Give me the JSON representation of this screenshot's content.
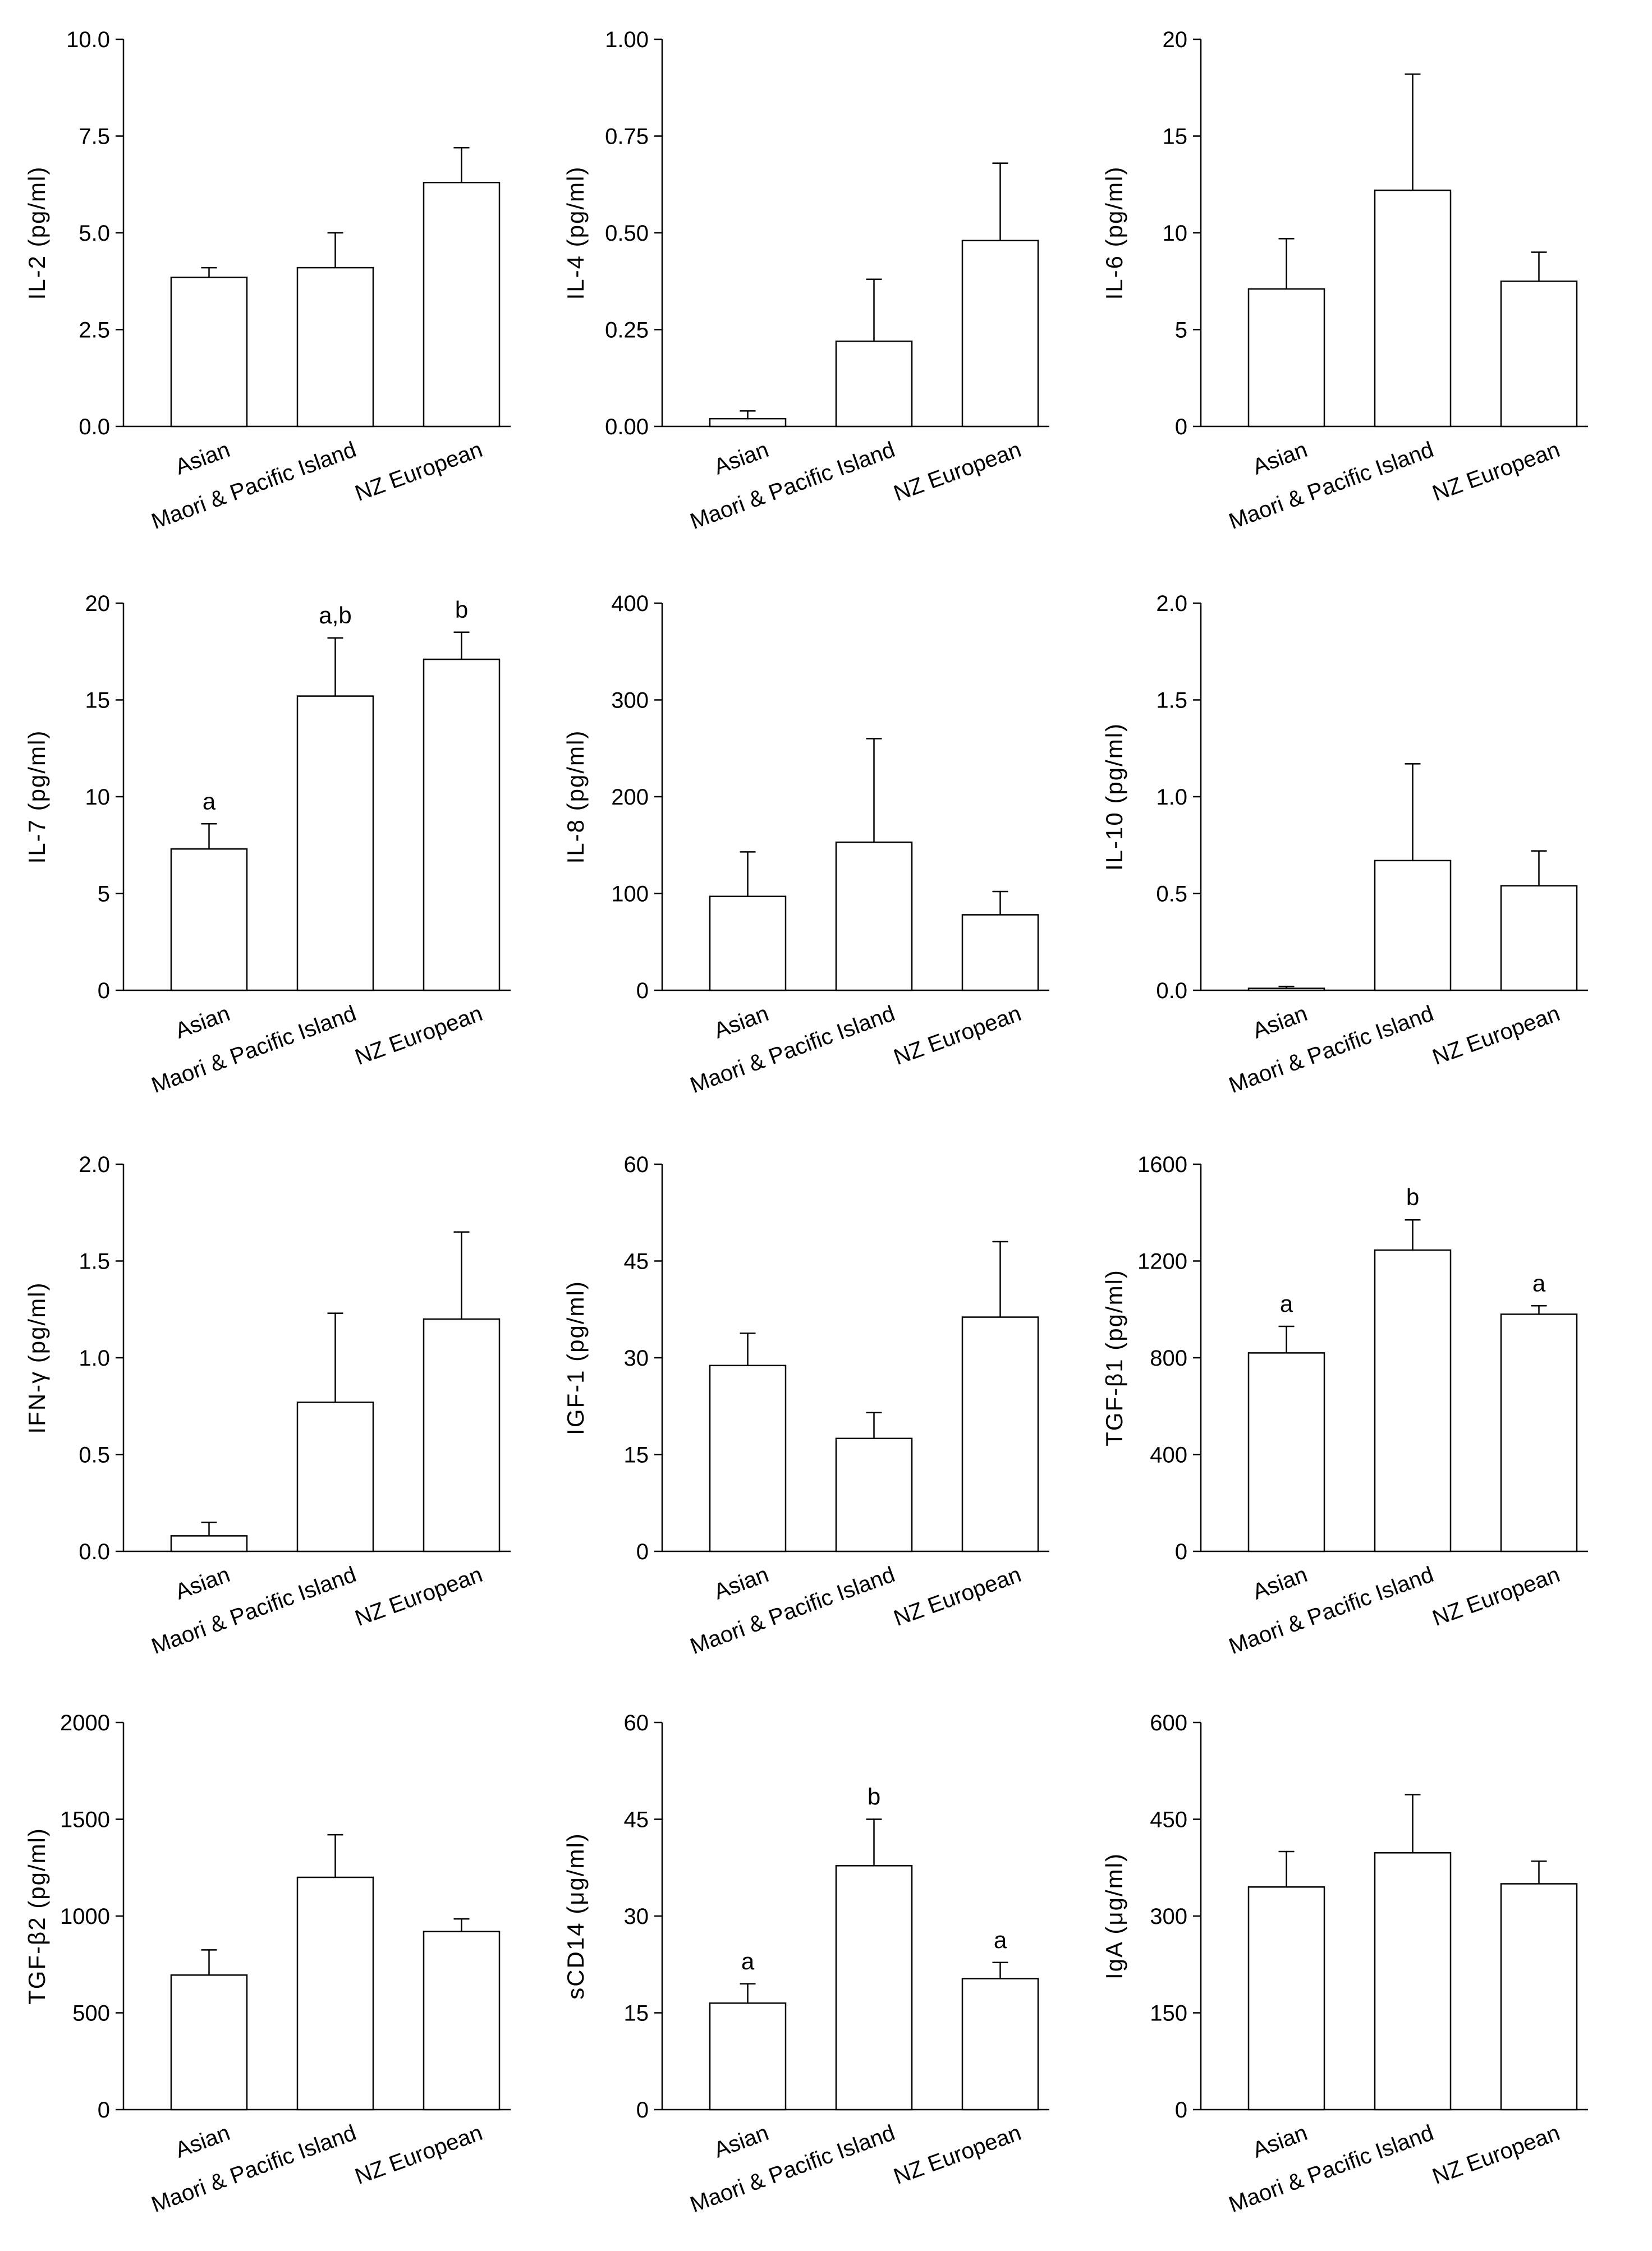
{
  "categories": [
    "Asian",
    "Maori & Pacific Island",
    "NZ European"
  ],
  "chart_data": [
    {
      "type": "bar",
      "ylabel": "IL-2 (pg/ml)",
      "ylim": [
        0,
        10
      ],
      "ticks": [
        "0.0",
        "2.5",
        "5.0",
        "7.5",
        "10.0"
      ],
      "categories": [
        "Asian",
        "Maori & Pacific Island",
        "NZ European"
      ],
      "values": [
        3.85,
        4.1,
        6.3
      ],
      "errors": [
        0.25,
        0.9,
        0.9
      ],
      "letters": [
        "",
        "",
        ""
      ]
    },
    {
      "type": "bar",
      "ylabel": "IL-4 (pg/ml)",
      "ylim": [
        0,
        1
      ],
      "ticks": [
        "0.00",
        "0.25",
        "0.50",
        "0.75",
        "1.00"
      ],
      "categories": [
        "Asian",
        "Maori & Pacific Island",
        "NZ European"
      ],
      "values": [
        0.02,
        0.22,
        0.48
      ],
      "errors": [
        0.02,
        0.16,
        0.2
      ],
      "letters": [
        "",
        "",
        ""
      ]
    },
    {
      "type": "bar",
      "ylabel": "IL-6 (pg/ml)",
      "ylim": [
        0,
        20
      ],
      "ticks": [
        "0",
        "5",
        "10",
        "15",
        "20"
      ],
      "categories": [
        "Asian",
        "Maori & Pacific Island",
        "NZ European"
      ],
      "values": [
        7.1,
        12.2,
        7.5
      ],
      "errors": [
        2.6,
        6.0,
        1.5
      ],
      "letters": [
        "",
        "",
        ""
      ]
    },
    {
      "type": "bar",
      "ylabel": "IL-7 (pg/ml)",
      "ylim": [
        0,
        20
      ],
      "ticks": [
        "0",
        "5",
        "10",
        "15",
        "20"
      ],
      "categories": [
        "Asian",
        "Maori & Pacific Island",
        "NZ European"
      ],
      "values": [
        7.3,
        15.2,
        17.1
      ],
      "errors": [
        1.3,
        3.0,
        1.4
      ],
      "letters": [
        "a",
        "a,b",
        "b"
      ]
    },
    {
      "type": "bar",
      "ylabel": "IL-8 (pg/ml)",
      "ylim": [
        0,
        400
      ],
      "ticks": [
        "0",
        "100",
        "200",
        "300",
        "400"
      ],
      "categories": [
        "Asian",
        "Maori & Pacific Island",
        "NZ European"
      ],
      "values": [
        97,
        153,
        78
      ],
      "errors": [
        46,
        107,
        24
      ],
      "letters": [
        "",
        "",
        ""
      ]
    },
    {
      "type": "bar",
      "ylabel": "IL-10 (pg/ml)",
      "ylim": [
        0,
        2
      ],
      "ticks": [
        "0.0",
        "0.5",
        "1.0",
        "1.5",
        "2.0"
      ],
      "categories": [
        "Asian",
        "Maori & Pacific Island",
        "NZ European"
      ],
      "values": [
        0.01,
        0.67,
        0.54
      ],
      "errors": [
        0.01,
        0.5,
        0.18
      ],
      "letters": [
        "",
        "",
        ""
      ]
    },
    {
      "type": "bar",
      "ylabel": "IFN-γ (pg/ml)",
      "ylim": [
        0,
        2
      ],
      "ticks": [
        "0.0",
        "0.5",
        "1.0",
        "1.5",
        "2.0"
      ],
      "categories": [
        "Asian",
        "Maori & Pacific Island",
        "NZ European"
      ],
      "values": [
        0.08,
        0.77,
        1.2
      ],
      "errors": [
        0.07,
        0.46,
        0.45
      ],
      "letters": [
        "",
        "",
        ""
      ]
    },
    {
      "type": "bar",
      "ylabel": "IGF-1 (pg/ml)",
      "ylim": [
        0,
        60
      ],
      "ticks": [
        "0",
        "15",
        "30",
        "45",
        "60"
      ],
      "categories": [
        "Asian",
        "Maori & Pacific Island",
        "NZ European"
      ],
      "values": [
        28.8,
        17.5,
        36.3
      ],
      "errors": [
        5.0,
        4.0,
        11.7
      ],
      "letters": [
        "",
        "",
        ""
      ]
    },
    {
      "type": "bar",
      "ylabel": "TGF-β1 (pg/ml)",
      "ylim": [
        0,
        1600
      ],
      "ticks": [
        "0",
        "400",
        "800",
        "1200",
        "1600"
      ],
      "categories": [
        "Asian",
        "Maori & Pacific Island",
        "NZ European"
      ],
      "values": [
        820,
        1245,
        980
      ],
      "errors": [
        110,
        125,
        35
      ],
      "letters": [
        "a",
        "b",
        "a"
      ]
    },
    {
      "type": "bar",
      "ylabel": "TGF-β2 (pg/ml)",
      "ylim": [
        0,
        2000
      ],
      "ticks": [
        "0",
        "500",
        "1000",
        "1500",
        "2000"
      ],
      "categories": [
        "Asian",
        "Maori & Pacific Island",
        "NZ European"
      ],
      "values": [
        695,
        1200,
        920
      ],
      "errors": [
        130,
        220,
        65
      ],
      "letters": [
        "",
        "",
        ""
      ]
    },
    {
      "type": "bar",
      "ylabel": "sCD14 (μg/ml)",
      "ylim": [
        0,
        60
      ],
      "ticks": [
        "0",
        "15",
        "30",
        "45",
        "60"
      ],
      "categories": [
        "Asian",
        "Maori & Pacific Island",
        "NZ European"
      ],
      "values": [
        16.5,
        37.8,
        20.3
      ],
      "errors": [
        3.0,
        7.2,
        2.5
      ],
      "letters": [
        "a",
        "b",
        "a"
      ]
    },
    {
      "type": "bar",
      "ylabel": "IgA (μg/ml)",
      "ylim": [
        0,
        600
      ],
      "ticks": [
        "0",
        "150",
        "300",
        "450",
        "600"
      ],
      "categories": [
        "Asian",
        "Maori & Pacific Island",
        "NZ European"
      ],
      "values": [
        345,
        398,
        350
      ],
      "errors": [
        55,
        90,
        35
      ],
      "letters": [
        "",
        "",
        ""
      ]
    }
  ]
}
